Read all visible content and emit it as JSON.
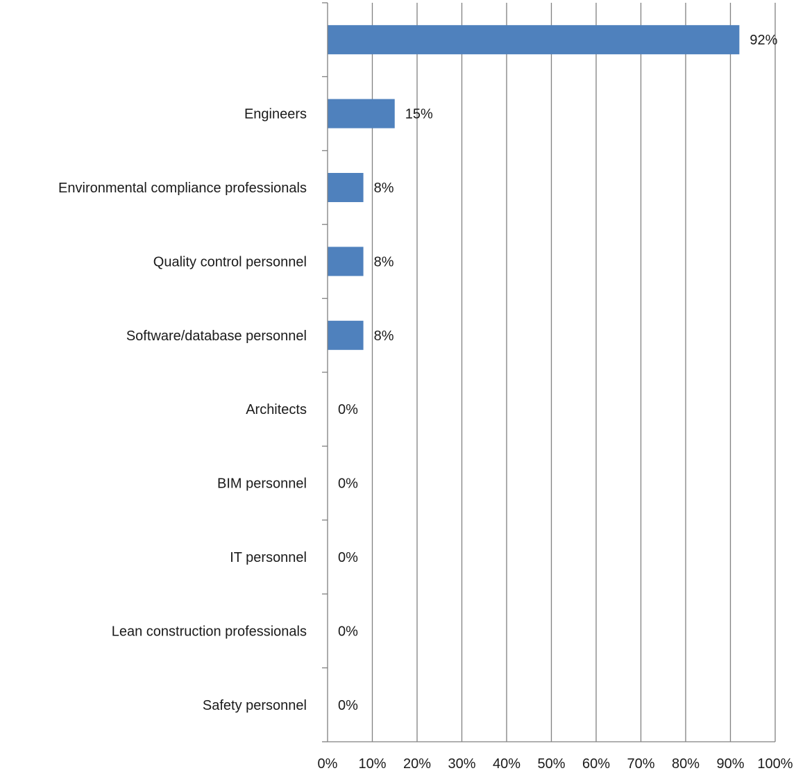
{
  "chart_data": {
    "type": "bar",
    "orientation": "horizontal",
    "title": "",
    "xlabel": "",
    "ylabel": "",
    "categories": [
      "",
      "Engineers",
      "Environmental compliance professionals",
      "Quality control personnel",
      "Software/database personnel",
      "Architects",
      "BIM personnel",
      "IT personnel",
      "Lean construction professionals",
      "Safety personnel"
    ],
    "values": [
      92,
      15,
      8,
      8,
      8,
      0,
      0,
      0,
      0,
      0
    ],
    "data_labels": [
      "92%",
      "15%",
      "8%",
      "8%",
      "8%",
      "0%",
      "0%",
      "0%",
      "0%",
      "0%"
    ],
    "xlim": [
      0,
      100
    ],
    "x_ticks": [
      0,
      10,
      20,
      30,
      40,
      50,
      60,
      70,
      80,
      90,
      100
    ],
    "x_tick_labels": [
      "0%",
      "10%",
      "20%",
      "30%",
      "40%",
      "50%",
      "60%",
      "70%",
      "80%",
      "90%",
      "100%"
    ],
    "grid": "vertical",
    "legend": "none",
    "colors": {
      "bar": "#4f81bd",
      "grid": "#808080",
      "axis": "#808080",
      "text": "#1a1a1a"
    }
  }
}
